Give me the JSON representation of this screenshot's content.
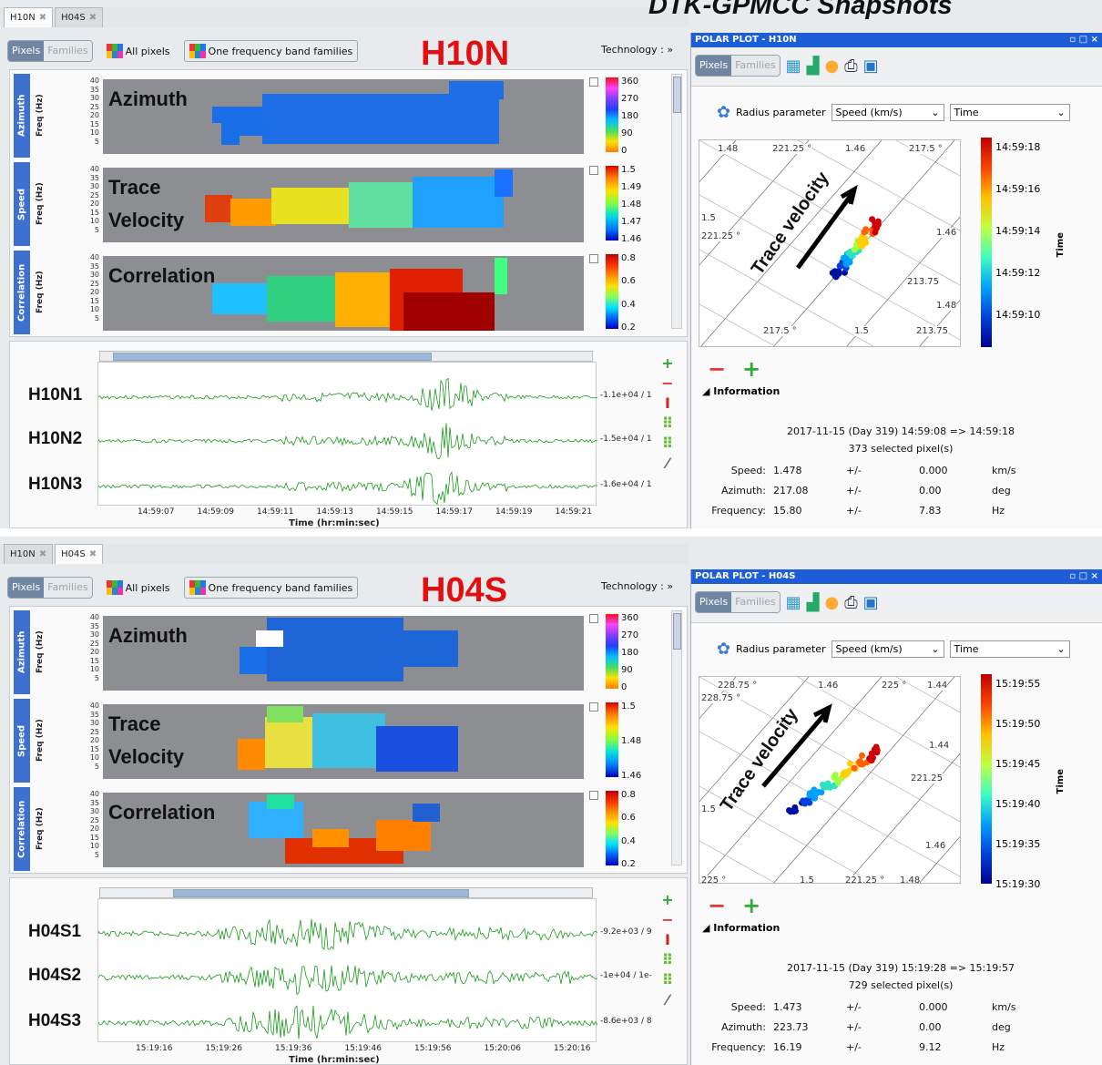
{
  "page_title": "DTK-GPMCC Snapshots",
  "panels": [
    {
      "tabs": [
        {
          "label": "H10N"
        },
        {
          "label": "H04S"
        }
      ],
      "toolbar": {
        "pixels": "Pixels",
        "families": "Families",
        "all_pixels": "All pixels",
        "band_families": "One frequency band families",
        "technology": "Technology : »"
      },
      "station": "H10N",
      "maps": [
        {
          "side": "Azimuth",
          "freq": "Freq (Hz)",
          "label": "Azimuth",
          "ticks": [
            "40",
            "35",
            "30",
            "25",
            "20",
            "15",
            "10",
            "5"
          ],
          "colorbar_ticks": [
            "360",
            "270",
            "180",
            "90",
            "0"
          ]
        },
        {
          "side": "Speed",
          "freq": "Freq (Hz)",
          "label": "Trace\nVelocity",
          "ticks": [
            "40",
            "35",
            "30",
            "25",
            "20",
            "15",
            "10",
            "5"
          ],
          "colorbar_ticks": [
            "1.5",
            "1.49",
            "1.48",
            "1.47",
            "1.46"
          ]
        },
        {
          "side": "Correlation",
          "freq": "Freq (Hz)",
          "label": "Correlation",
          "ticks": [
            "40",
            "35",
            "30",
            "25",
            "20",
            "15",
            "10",
            "5"
          ],
          "colorbar_ticks": [
            "0.8",
            "0.6",
            "0.4",
            "0.2"
          ]
        }
      ],
      "traces": [
        {
          "name": "H10N1",
          "scale": "-1.1e+04 / 1"
        },
        {
          "name": "H10N2",
          "scale": "-1.5e+04 / 1"
        },
        {
          "name": "H10N3",
          "scale": "-1.6e+04 / 1"
        }
      ],
      "time_ticks": [
        "14:59:07",
        "14:59:09",
        "14:59:11",
        "14:59:13",
        "14:59:15",
        "14:59:17",
        "14:59:19",
        "14:59:21"
      ],
      "time_title": "Time (hr:min:sec)",
      "polar": {
        "title": "POLAR PLOT - H10N",
        "radius_label": "Radius parameter",
        "radius_value": "Speed (km/s)",
        "color_value": "Time",
        "trace_label": "Trace velocity",
        "grid_labels": [
          "1.48",
          "221.25 °",
          "1.46",
          "217.5 °",
          "1.5",
          "221.25 °",
          "1.46",
          "213.75",
          "1.48",
          "217.5 °",
          "1.5",
          "213.75"
        ],
        "time_ticks": [
          "14:59:18",
          "14:59:16",
          "14:59:14",
          "14:59:12",
          "14:59:10"
        ],
        "time_axis": "Time",
        "info_title": "Information",
        "info_range": "2017-11-15 (Day 319) 14:59:08 => 14:59:18",
        "info_count": "373 selected pixel(s)",
        "rows": [
          {
            "name": "Speed:",
            "value": "1.478",
            "pm": "+/-",
            "err": "0.000",
            "unit": "km/s"
          },
          {
            "name": "Azimuth:",
            "value": "217.08",
            "pm": "+/-",
            "err": "0.00",
            "unit": "deg"
          },
          {
            "name": "Frequency:",
            "value": "15.80",
            "pm": "+/-",
            "err": "7.83",
            "unit": "Hz"
          }
        ]
      }
    },
    {
      "tabs": [
        {
          "label": "H10N"
        },
        {
          "label": "H04S"
        }
      ],
      "toolbar": {
        "pixels": "Pixels",
        "families": "Families",
        "all_pixels": "All pixels",
        "band_families": "One frequency band families",
        "technology": "Technology : »"
      },
      "station": "H04S",
      "maps": [
        {
          "side": "Azimuth",
          "freq": "Freq (Hz)",
          "label": "Azimuth",
          "ticks": [
            "40",
            "35",
            "30",
            "25",
            "20",
            "15",
            "10",
            "5"
          ],
          "colorbar_ticks": [
            "360",
            "270",
            "180",
            "90",
            "0"
          ]
        },
        {
          "side": "Speed",
          "freq": "Freq (Hz)",
          "label": "Trace\nVelocity",
          "ticks": [
            "40",
            "35",
            "30",
            "25",
            "20",
            "15",
            "10",
            "5"
          ],
          "colorbar_ticks": [
            "1.5",
            "1.48",
            "1.46"
          ]
        },
        {
          "side": "Correlation",
          "freq": "Freq (Hz)",
          "label": "Correlation",
          "ticks": [
            "40",
            "35",
            "30",
            "25",
            "20",
            "15",
            "10",
            "5"
          ],
          "colorbar_ticks": [
            "0.8",
            "0.6",
            "0.4",
            "0.2"
          ]
        }
      ],
      "traces": [
        {
          "name": "H04S1",
          "scale": "-9.2e+03 / 9"
        },
        {
          "name": "H04S2",
          "scale": "-1e+04 / 1e-"
        },
        {
          "name": "H04S3",
          "scale": "-8.6e+03 / 8"
        }
      ],
      "time_ticks": [
        "15:19:16",
        "15:19:26",
        "15:19:36",
        "15:19:46",
        "15:19:56",
        "15:20:06",
        "15:20:16"
      ],
      "time_title": "Time (hr:min:sec)",
      "polar": {
        "title": "POLAR PLOT - H04S",
        "radius_label": "Radius parameter",
        "radius_value": "Speed (km/s)",
        "color_value": "Time",
        "trace_label": "Trace velocity",
        "grid_labels": [
          "228.75 °",
          "228.75 °",
          "1.46",
          "225 °",
          "1.44",
          "1.44",
          "221.25",
          "1.5",
          "1.46",
          "225 °",
          "1.5",
          "221.25 °",
          "1.48"
        ],
        "time_ticks": [
          "15:19:55",
          "15:19:50",
          "15:19:45",
          "15:19:40",
          "15:19:35",
          "15:19:30"
        ],
        "time_axis": "Time",
        "info_title": "Information",
        "info_range": "2017-11-15 (Day 319) 15:19:28 => 15:19:57",
        "info_count": "729 selected pixel(s)",
        "rows": [
          {
            "name": "Speed:",
            "value": "1.473",
            "pm": "+/-",
            "err": "0.000",
            "unit": "km/s"
          },
          {
            "name": "Azimuth:",
            "value": "223.73",
            "pm": "+/-",
            "err": "0.00",
            "unit": "deg"
          },
          {
            "name": "Frequency:",
            "value": "16.19",
            "pm": "+/-",
            "err": "9.12",
            "unit": "Hz"
          }
        ]
      }
    }
  ],
  "colors": {
    "accent": "#1d5ed8",
    "station": "#e01010",
    "waveform": "#1a9a1a"
  }
}
